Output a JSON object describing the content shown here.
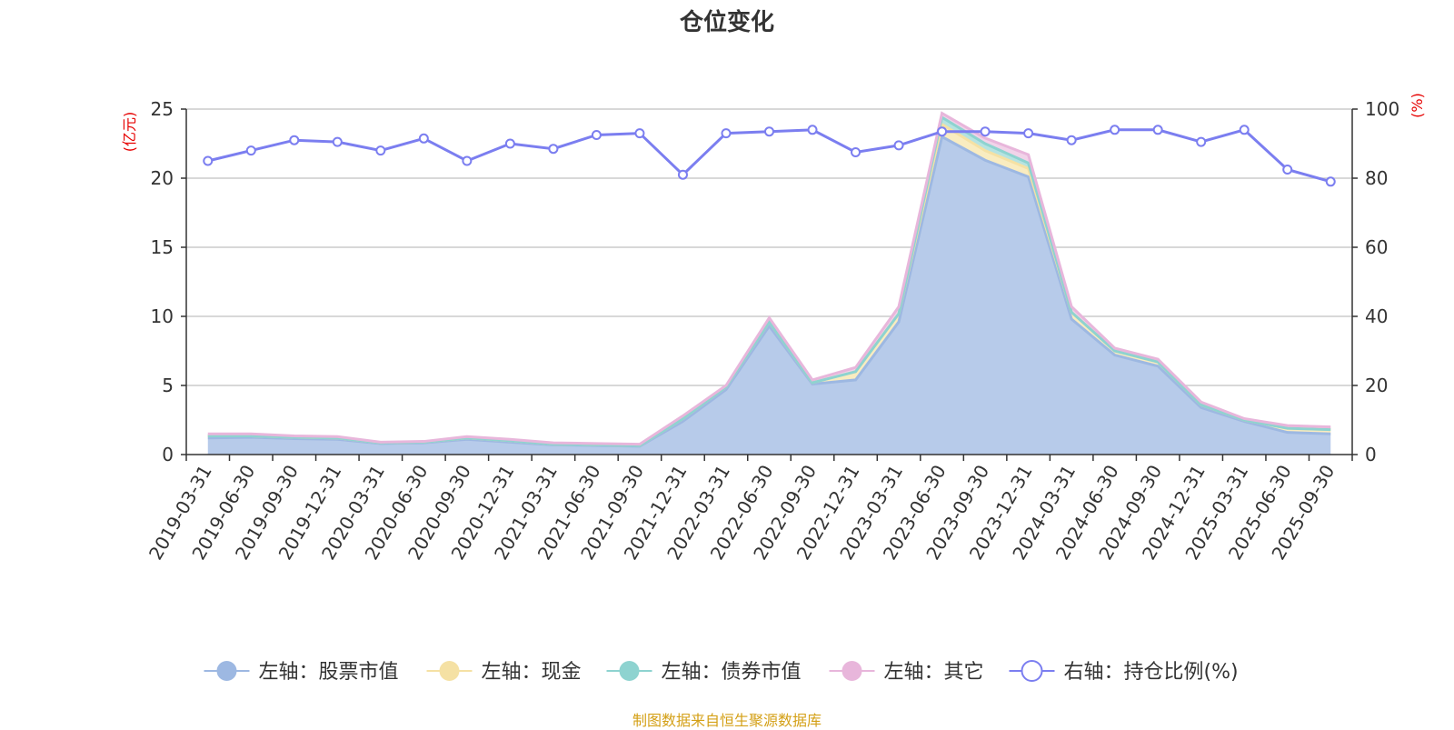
{
  "chart_data": {
    "type": "area",
    "title": "仓位变化",
    "source_note": "制图数据来自恒生聚源数据库",
    "left_axis": {
      "unit": "(亿元)",
      "ylim": [
        0,
        25
      ],
      "ticks": [
        0,
        5,
        10,
        15,
        20,
        25
      ]
    },
    "right_axis": {
      "unit": "(%)",
      "ylim": [
        0,
        100
      ],
      "ticks": [
        0,
        20,
        40,
        60,
        80,
        100
      ]
    },
    "x": [
      "2019-03-31",
      "2019-06-30",
      "2019-09-30",
      "2019-12-31",
      "2020-03-31",
      "2020-06-30",
      "2020-09-30",
      "2020-12-31",
      "2021-03-31",
      "2021-06-30",
      "2021-09-30",
      "2021-12-31",
      "2022-03-31",
      "2022-06-30",
      "2022-09-30",
      "2022-12-31",
      "2023-03-31",
      "2023-06-30",
      "2023-09-30",
      "2023-12-31",
      "2024-03-31",
      "2024-06-30",
      "2024-09-30",
      "2024-12-31",
      "2025-03-31",
      "2025-06-30",
      "2025-09-30"
    ],
    "grid": true,
    "legend_position": "bottom",
    "series": [
      {
        "name": "左轴：股票市值",
        "axis": "left",
        "kind": "stacked-area",
        "color": "#9db8e2",
        "fill": "#b7cbea",
        "values": [
          1.2,
          1.25,
          1.15,
          1.1,
          0.8,
          0.85,
          1.1,
          0.9,
          0.7,
          0.65,
          0.6,
          2.4,
          4.7,
          9.3,
          5.1,
          5.4,
          9.6,
          23.0,
          21.3,
          20.1,
          9.8,
          7.2,
          6.4,
          3.4,
          2.4,
          1.6,
          1.5
        ]
      },
      {
        "name": "左轴：现金",
        "axis": "left",
        "kind": "stacked-area",
        "color": "#f5e1a4",
        "fill": "#f9ecc0",
        "values": [
          0.15,
          0.1,
          0.1,
          0.1,
          0.05,
          0.05,
          0.1,
          0.1,
          0.05,
          0.05,
          0.05,
          0.2,
          0.2,
          0.3,
          0.1,
          0.6,
          0.6,
          0.9,
          0.7,
          0.6,
          0.5,
          0.3,
          0.3,
          0.2,
          0.1,
          0.3,
          0.3
        ]
      },
      {
        "name": "左轴：债券市值",
        "axis": "left",
        "kind": "stacked-area",
        "color": "#8ed3d0",
        "fill": "#b6e3e1",
        "values": [
          0,
          0,
          0,
          0,
          0,
          0,
          0,
          0,
          0,
          0,
          0,
          0,
          0,
          0,
          0,
          0,
          0,
          0.5,
          0.5,
          0.4,
          0,
          0,
          0,
          0,
          0,
          0,
          0
        ]
      },
      {
        "name": "左轴：其它",
        "axis": "left",
        "kind": "stacked-area",
        "color": "#e8b6db",
        "fill": "#f1d3e9",
        "values": [
          0.15,
          0.15,
          0.1,
          0.1,
          0.05,
          0.05,
          0.1,
          0.1,
          0.1,
          0.1,
          0.1,
          0.2,
          0.1,
          0.3,
          0.2,
          0.3,
          0.5,
          0.3,
          0.4,
          0.6,
          0.4,
          0.2,
          0.2,
          0.2,
          0.1,
          0.2,
          0.2
        ]
      },
      {
        "name": "右轴：持仓比例(%)",
        "axis": "right",
        "kind": "line",
        "color": "#7b7ef0",
        "values": [
          85,
          88,
          91,
          90.5,
          88,
          91.5,
          85,
          90,
          88.5,
          92.5,
          93,
          81,
          93,
          93.5,
          94,
          87.5,
          89.5,
          93.5,
          93.5,
          93,
          91,
          94,
          94,
          90.5,
          94,
          82.5,
          79
        ]
      }
    ]
  }
}
